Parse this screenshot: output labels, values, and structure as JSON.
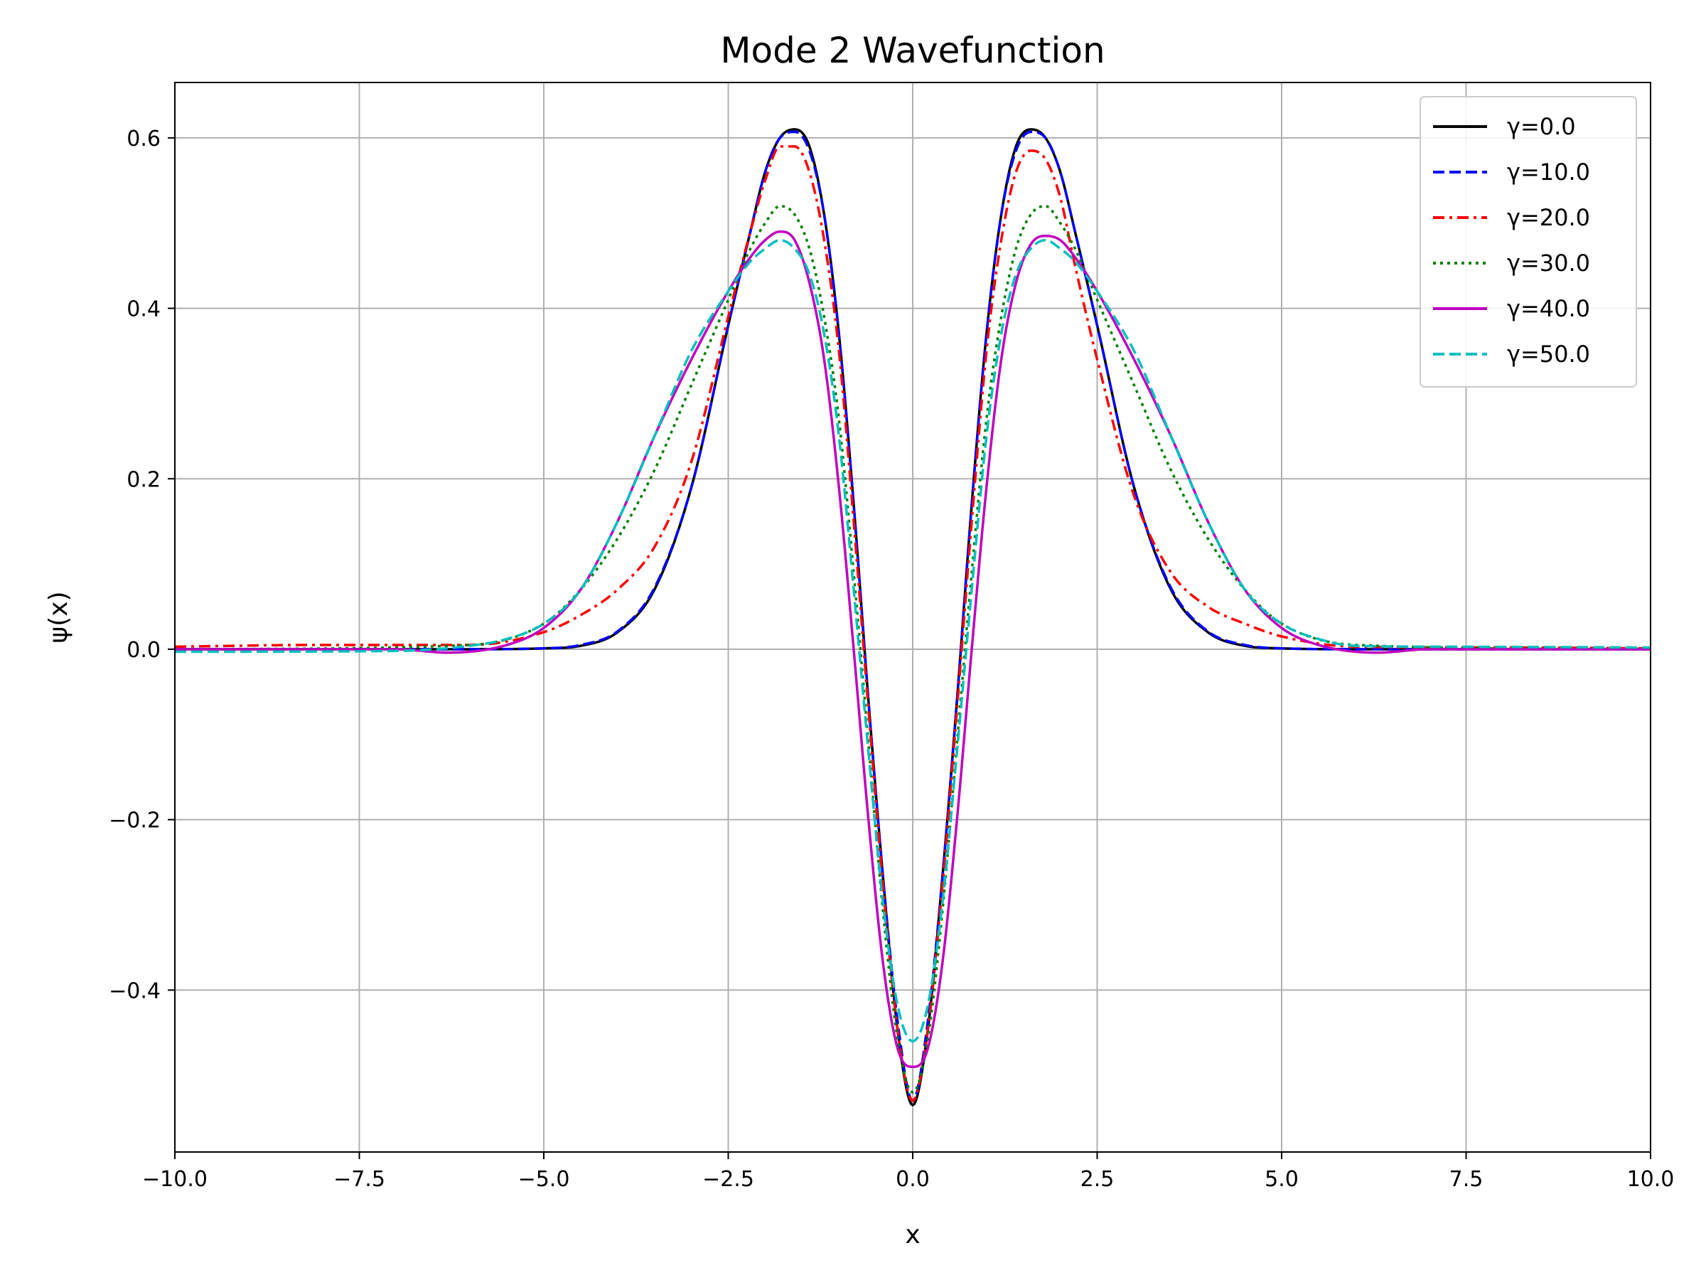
{
  "chart_data": {
    "type": "line",
    "title": "Mode 2 Wavefunction",
    "xlabel": "x",
    "ylabel": "ψ(x)",
    "xlim": [
      -10,
      10
    ],
    "ylim": [
      -0.59,
      0.665
    ],
    "xticks": [
      -10,
      -7.5,
      -5,
      -2.5,
      0,
      2.5,
      5,
      7.5,
      10
    ],
    "xtick_labels": [
      "−10.0",
      "−7.5",
      "−5.0",
      "−2.5",
      "0.0",
      "2.5",
      "5.0",
      "7.5",
      "10.0"
    ],
    "yticks": [
      -0.4,
      -0.2,
      0,
      0.2,
      0.4,
      0.6
    ],
    "ytick_labels": [
      "−0.4",
      "−0.2",
      "0.0",
      "0.2",
      "0.4",
      "0.6"
    ],
    "grid": true,
    "legend_position": "top-right",
    "series": [
      {
        "name": "γ=0.0",
        "color": "#000000",
        "dash": "solid",
        "x": [
          -10,
          -6,
          -5,
          -4.5,
          -4,
          -3.5,
          -3,
          -2.5,
          -2.2,
          -2,
          -1.8,
          -1.6,
          -1.4,
          -1.2,
          -1,
          -0.8,
          -0.6,
          -0.4,
          -0.2,
          0,
          0.2,
          0.4,
          0.6,
          0.8,
          1,
          1.2,
          1.4,
          1.6,
          1.8,
          2,
          2.2,
          2.5,
          3,
          3.5,
          4,
          4.5,
          5,
          6,
          10
        ],
        "y": [
          0,
          0,
          0.001,
          0.004,
          0.02,
          0.07,
          0.19,
          0.38,
          0.49,
          0.56,
          0.6,
          0.61,
          0.59,
          0.51,
          0.37,
          0.17,
          -0.06,
          -0.27,
          -0.45,
          -0.535,
          -0.45,
          -0.27,
          -0.06,
          0.17,
          0.37,
          0.51,
          0.59,
          0.61,
          0.6,
          0.56,
          0.49,
          0.38,
          0.19,
          0.07,
          0.02,
          0.004,
          0.001,
          0,
          0
        ]
      },
      {
        "name": "γ=10.0",
        "color": "#0000ff",
        "dash": "dashed",
        "x": [
          -10,
          -6,
          -5,
          -4.5,
          -4,
          -3.5,
          -3,
          -2.5,
          -2.2,
          -2,
          -1.8,
          -1.6,
          -1.4,
          -1.2,
          -1,
          -0.8,
          -0.6,
          -0.4,
          -0.2,
          0,
          0.2,
          0.4,
          0.6,
          0.8,
          1,
          1.2,
          1.4,
          1.6,
          1.8,
          2,
          2.2,
          2.5,
          3,
          3.5,
          4,
          4.5,
          5,
          6,
          10
        ],
        "y": [
          0,
          0,
          0.001,
          0.005,
          0.021,
          0.072,
          0.19,
          0.38,
          0.49,
          0.56,
          0.6,
          0.607,
          0.585,
          0.51,
          0.37,
          0.17,
          -0.06,
          -0.27,
          -0.44,
          -0.53,
          -0.44,
          -0.27,
          -0.06,
          0.17,
          0.37,
          0.51,
          0.585,
          0.607,
          0.6,
          0.56,
          0.49,
          0.38,
          0.19,
          0.072,
          0.021,
          0.005,
          0.001,
          0,
          0
        ]
      },
      {
        "name": "γ=20.0",
        "color": "#ff0000",
        "dash": "dashdot",
        "x": [
          -10,
          -8,
          -6,
          -5,
          -4.5,
          -4,
          -3.5,
          -3,
          -2.5,
          -2.2,
          -2,
          -1.8,
          -1.6,
          -1.4,
          -1.2,
          -1,
          -0.8,
          -0.6,
          -0.4,
          -0.2,
          0,
          0.2,
          0.4,
          0.6,
          0.8,
          1,
          1.2,
          1.4,
          1.6,
          1.8,
          2,
          2.2,
          2.5,
          3,
          3.5,
          4,
          4.5,
          5,
          6,
          8,
          10
        ],
        "y": [
          0.003,
          0.005,
          0.005,
          0.02,
          0.04,
          0.07,
          0.12,
          0.22,
          0.39,
          0.49,
          0.55,
          0.59,
          0.59,
          0.56,
          0.48,
          0.35,
          0.15,
          -0.07,
          -0.28,
          -0.45,
          -0.53,
          -0.45,
          -0.28,
          -0.07,
          0.15,
          0.35,
          0.48,
          0.56,
          0.585,
          0.575,
          0.53,
          0.45,
          0.34,
          0.18,
          0.09,
          0.05,
          0.03,
          0.015,
          0.003,
          0.002,
          0.001
        ]
      },
      {
        "name": "γ=30.0",
        "color": "#008000",
        "dash": "dotted",
        "x": [
          -10,
          -6,
          -5,
          -4.5,
          -4,
          -3.5,
          -3,
          -2.5,
          -2.2,
          -2,
          -1.8,
          -1.6,
          -1.4,
          -1.2,
          -1,
          -0.8,
          -0.6,
          -0.4,
          -0.2,
          0,
          0.2,
          0.4,
          0.6,
          0.8,
          1,
          1.2,
          1.4,
          1.6,
          1.8,
          2,
          2.2,
          2.5,
          3,
          3.5,
          4,
          4.5,
          5,
          6,
          10
        ],
        "y": [
          0,
          0.005,
          0.03,
          0.07,
          0.13,
          0.21,
          0.31,
          0.41,
          0.47,
          0.5,
          0.52,
          0.51,
          0.47,
          0.39,
          0.27,
          0.09,
          -0.11,
          -0.31,
          -0.46,
          -0.52,
          -0.46,
          -0.31,
          -0.11,
          0.09,
          0.27,
          0.39,
          0.47,
          0.51,
          0.52,
          0.5,
          0.47,
          0.41,
          0.31,
          0.21,
          0.13,
          0.07,
          0.03,
          0.005,
          0
        ]
      },
      {
        "name": "γ=40.0",
        "color": "#bf00bf",
        "dash": "solid",
        "x": [
          -10,
          -7,
          -6.3,
          -5.5,
          -5,
          -4.5,
          -4,
          -3.5,
          -3,
          -2.5,
          -2.2,
          -2,
          -1.8,
          -1.6,
          -1.4,
          -1.2,
          -1,
          -0.8,
          -0.6,
          -0.4,
          -0.2,
          0,
          0.2,
          0.4,
          0.6,
          0.8,
          1,
          1.2,
          1.4,
          1.6,
          1.8,
          2,
          2.2,
          2.5,
          3,
          3.5,
          4,
          4.5,
          5,
          5.5,
          6.3,
          7,
          10
        ],
        "y": [
          0,
          0,
          -0.004,
          0.005,
          0.025,
          0.07,
          0.15,
          0.25,
          0.34,
          0.42,
          0.46,
          0.48,
          0.49,
          0.48,
          0.43,
          0.34,
          0.19,
          0,
          -0.2,
          -0.37,
          -0.47,
          -0.49,
          -0.47,
          -0.37,
          -0.2,
          0,
          0.19,
          0.34,
          0.43,
          0.475,
          0.485,
          0.48,
          0.46,
          0.42,
          0.34,
          0.25,
          0.15,
          0.07,
          0.025,
          0.005,
          -0.004,
          0,
          0
        ]
      },
      {
        "name": "γ=50.0",
        "color": "#00bfbf",
        "dash": "dashed",
        "x": [
          -10,
          -7,
          -6,
          -5.5,
          -5,
          -4.5,
          -4,
          -3.5,
          -3,
          -2.5,
          -2.2,
          -2,
          -1.8,
          -1.6,
          -1.4,
          -1.2,
          -1,
          -0.8,
          -0.6,
          -0.4,
          -0.2,
          0,
          0.2,
          0.4,
          0.6,
          0.8,
          1,
          1.2,
          1.4,
          1.6,
          1.8,
          2,
          2.2,
          2.5,
          3,
          3.5,
          4,
          4.5,
          5,
          5.5,
          6,
          7,
          10
        ],
        "y": [
          -0.003,
          -0.002,
          0.004,
          0.012,
          0.03,
          0.07,
          0.15,
          0.25,
          0.35,
          0.42,
          0.455,
          0.47,
          0.48,
          0.47,
          0.44,
          0.37,
          0.25,
          0.07,
          -0.12,
          -0.3,
          -0.42,
          -0.46,
          -0.42,
          -0.3,
          -0.12,
          0.07,
          0.25,
          0.37,
          0.44,
          0.47,
          0.48,
          0.47,
          0.455,
          0.42,
          0.35,
          0.25,
          0.15,
          0.07,
          0.03,
          0.012,
          0.004,
          0.003,
          0.002
        ]
      }
    ]
  }
}
